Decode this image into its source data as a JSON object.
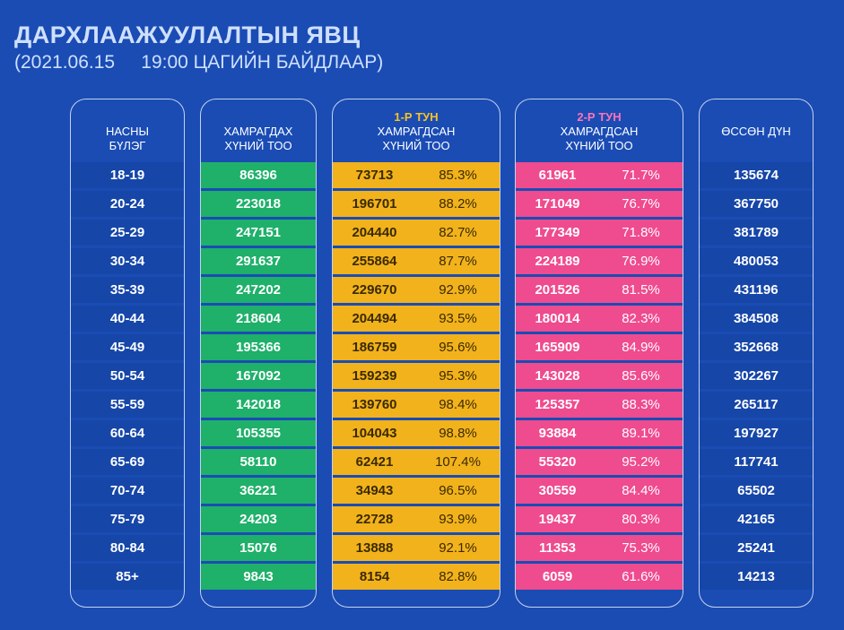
{
  "header": {
    "title": "ДАРХЛААЖУУЛАЛТЫН ЯВЦ",
    "subtitle": "(2021.06.15     19:00 ЦАГИЙН БАЙДЛААР)"
  },
  "columns": {
    "age": {
      "line1": "НАСНЫ",
      "line2": "БҮЛЭГ"
    },
    "target": {
      "line1": "ХАМРАГДАХ",
      "line2": "ХҮНИЙ ТОО"
    },
    "dose1": {
      "dose": "1-Р ТУН",
      "line1": "ХАМРАГДСАН",
      "line2": "ХҮНИЙ ТОО"
    },
    "dose2": {
      "dose": "2-Р ТУН",
      "line1": "ХАМРАГДСАН",
      "line2": "ХҮНИЙ ТОО"
    },
    "cumulative": {
      "line1": "ӨССӨН ДҮН"
    }
  },
  "colors": {
    "background": "#1a4cb4",
    "target": "#1fb06a",
    "dose1": "#f2b21c",
    "dose2": "#ef4b8f"
  },
  "chart_data": {
    "type": "table",
    "title": "ДАРХЛААЖУУЛАЛТЫН ЯВЦ",
    "rows": [
      {
        "age": "18-19",
        "target": "86396",
        "dose1": "73713",
        "dose1_pct": "85.3%",
        "dose2": "61961",
        "dose2_pct": "71.7%",
        "total": "135674"
      },
      {
        "age": "20-24",
        "target": "223018",
        "dose1": "196701",
        "dose1_pct": "88.2%",
        "dose2": "171049",
        "dose2_pct": "76.7%",
        "total": "367750"
      },
      {
        "age": "25-29",
        "target": "247151",
        "dose1": "204440",
        "dose1_pct": "82.7%",
        "dose2": "177349",
        "dose2_pct": "71.8%",
        "total": "381789"
      },
      {
        "age": "30-34",
        "target": "291637",
        "dose1": "255864",
        "dose1_pct": "87.7%",
        "dose2": "224189",
        "dose2_pct": "76.9%",
        "total": "480053"
      },
      {
        "age": "35-39",
        "target": "247202",
        "dose1": "229670",
        "dose1_pct": "92.9%",
        "dose2": "201526",
        "dose2_pct": "81.5%",
        "total": "431196"
      },
      {
        "age": "40-44",
        "target": "218604",
        "dose1": "204494",
        "dose1_pct": "93.5%",
        "dose2": "180014",
        "dose2_pct": "82.3%",
        "total": "384508"
      },
      {
        "age": "45-49",
        "target": "195366",
        "dose1": "186759",
        "dose1_pct": "95.6%",
        "dose2": "165909",
        "dose2_pct": "84.9%",
        "total": "352668"
      },
      {
        "age": "50-54",
        "target": "167092",
        "dose1": "159239",
        "dose1_pct": "95.3%",
        "dose2": "143028",
        "dose2_pct": "85.6%",
        "total": "302267"
      },
      {
        "age": "55-59",
        "target": "142018",
        "dose1": "139760",
        "dose1_pct": "98.4%",
        "dose2": "125357",
        "dose2_pct": "88.3%",
        "total": "265117"
      },
      {
        "age": "60-64",
        "target": "105355",
        "dose1": "104043",
        "dose1_pct": "98.8%",
        "dose2": "93884",
        "dose2_pct": "89.1%",
        "total": "197927"
      },
      {
        "age": "65-69",
        "target": "58110",
        "dose1": "62421",
        "dose1_pct": "107.4%",
        "dose2": "55320",
        "dose2_pct": "95.2%",
        "total": "117741"
      },
      {
        "age": "70-74",
        "target": "36221",
        "dose1": "34943",
        "dose1_pct": "96.5%",
        "dose2": "30559",
        "dose2_pct": "84.4%",
        "total": "65502"
      },
      {
        "age": "75-79",
        "target": "24203",
        "dose1": "22728",
        "dose1_pct": "93.9%",
        "dose2": "19437",
        "dose2_pct": "80.3%",
        "total": "42165"
      },
      {
        "age": "80-84",
        "target": "15076",
        "dose1": "13888",
        "dose1_pct": "92.1%",
        "dose2": "11353",
        "dose2_pct": "75.3%",
        "total": "25241"
      },
      {
        "age": "85+",
        "target": "9843",
        "dose1": "8154",
        "dose1_pct": "82.8%",
        "dose2": "6059",
        "dose2_pct": "61.6%",
        "total": "14213"
      }
    ]
  }
}
